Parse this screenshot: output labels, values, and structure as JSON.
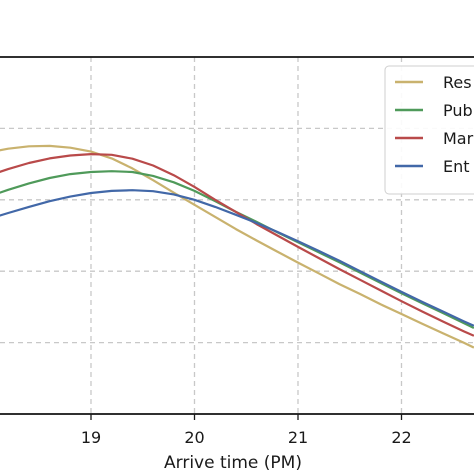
{
  "chart_data": {
    "type": "line",
    "xlabel": "Arrive time (PM)",
    "ylabel": "",
    "title": "",
    "x_ticks": [
      "19",
      "20",
      "21",
      "22"
    ],
    "xlim": [
      18.0,
      22.7
    ],
    "ylim": [
      0.0,
      1.0
    ],
    "grid": true,
    "legend_position": "upper-right",
    "series": [
      {
        "name": "Res",
        "color": "#c9b26e",
        "x": [
          18.0,
          18.2,
          18.4,
          18.6,
          18.8,
          19.0,
          19.2,
          19.4,
          19.6,
          19.8,
          20.0,
          20.2,
          20.4,
          20.6,
          20.8,
          21.0,
          21.2,
          21.4,
          21.6,
          21.8,
          22.0,
          22.2,
          22.4,
          22.6,
          22.7
        ],
        "y": [
          0.732,
          0.743,
          0.75,
          0.751,
          0.746,
          0.735,
          0.716,
          0.688,
          0.655,
          0.62,
          0.586,
          0.552,
          0.518,
          0.486,
          0.455,
          0.424,
          0.394,
          0.364,
          0.336,
          0.307,
          0.28,
          0.253,
          0.226,
          0.2,
          0.186
        ]
      },
      {
        "name": "Pub",
        "color": "#4f9a5a",
        "x": [
          18.0,
          18.2,
          18.4,
          18.6,
          18.8,
          19.0,
          19.2,
          19.4,
          19.6,
          19.8,
          20.0,
          20.2,
          20.4,
          20.6,
          20.8,
          21.0,
          21.2,
          21.4,
          21.6,
          21.8,
          22.0,
          22.2,
          22.4,
          22.6,
          22.7
        ],
        "y": [
          0.608,
          0.628,
          0.646,
          0.661,
          0.672,
          0.678,
          0.68,
          0.678,
          0.667,
          0.649,
          0.625,
          0.596,
          0.566,
          0.538,
          0.509,
          0.481,
          0.453,
          0.425,
          0.396,
          0.367,
          0.338,
          0.31,
          0.283,
          0.255,
          0.241
        ]
      },
      {
        "name": "Mar",
        "color": "#b94a4a",
        "x": [
          18.0,
          18.2,
          18.4,
          18.6,
          18.8,
          19.0,
          19.2,
          19.4,
          19.6,
          19.8,
          20.0,
          20.2,
          20.4,
          20.6,
          20.8,
          21.0,
          21.2,
          21.4,
          21.6,
          21.8,
          22.0,
          22.2,
          22.4,
          22.6,
          22.7
        ],
        "y": [
          0.667,
          0.686,
          0.703,
          0.716,
          0.724,
          0.728,
          0.726,
          0.715,
          0.696,
          0.669,
          0.636,
          0.6,
          0.566,
          0.532,
          0.5,
          0.468,
          0.437,
          0.406,
          0.376,
          0.346,
          0.316,
          0.287,
          0.259,
          0.232,
          0.219
        ]
      },
      {
        "name": "Ent",
        "color": "#4268a8",
        "x": [
          18.0,
          18.2,
          18.4,
          18.6,
          18.8,
          19.0,
          19.2,
          19.4,
          19.6,
          19.8,
          20.0,
          20.2,
          20.4,
          20.6,
          20.8,
          21.0,
          21.2,
          21.4,
          21.6,
          21.8,
          22.0,
          22.2,
          22.4,
          22.6,
          22.7
        ],
        "y": [
          0.545,
          0.563,
          0.58,
          0.596,
          0.609,
          0.619,
          0.625,
          0.627,
          0.624,
          0.615,
          0.6,
          0.58,
          0.558,
          0.535,
          0.51,
          0.484,
          0.457,
          0.429,
          0.4,
          0.371,
          0.342,
          0.314,
          0.287,
          0.26,
          0.247
        ]
      }
    ]
  }
}
